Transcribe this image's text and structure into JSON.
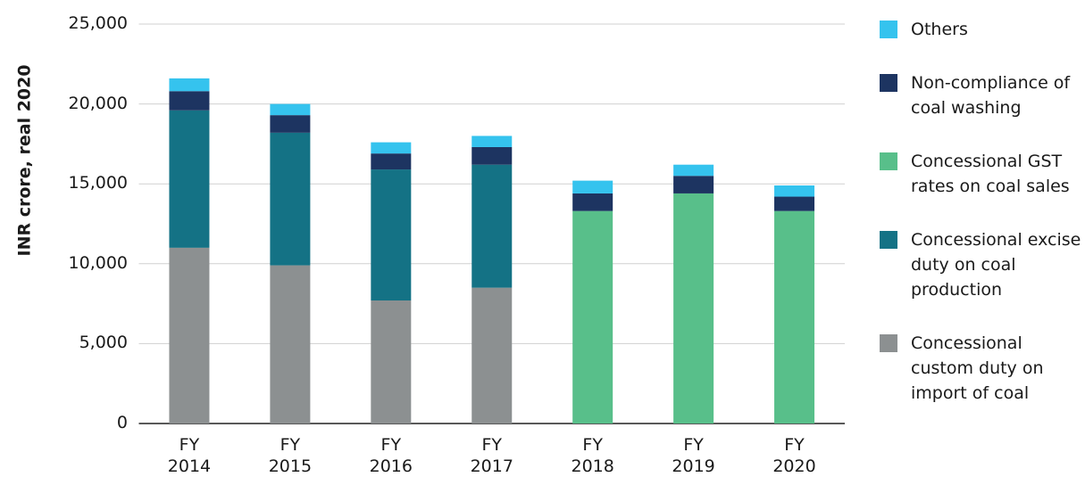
{
  "chart_data": {
    "type": "stacked_bar",
    "y_label": "INR crore, real 2020",
    "categories": [
      "FY 2014",
      "FY 2015",
      "FY 2016",
      "FY 2017",
      "FY 2018",
      "FY 2019",
      "FY 2020"
    ],
    "series": [
      {
        "name": "Concessional custom duty on import of coal",
        "color": "#8c9091",
        "values": [
          11000,
          9900,
          7700,
          8500,
          null,
          null,
          null
        ]
      },
      {
        "name": "Concessional excise duty on coal production",
        "color": "#147285",
        "values": [
          8600,
          8300,
          8200,
          7700,
          null,
          null,
          null
        ]
      },
      {
        "name": "Concessional GST rates on coal sales",
        "color": "#58bf8a",
        "values": [
          null,
          null,
          null,
          null,
          13300,
          14400,
          13300
        ]
      },
      {
        "name": "Non-compliance of coal washing",
        "color": "#1d3461",
        "values": [
          1200,
          1100,
          1000,
          1100,
          1100,
          1100,
          900
        ]
      },
      {
        "name": "Others",
        "color": "#35c3ee",
        "values": [
          800,
          700,
          700,
          700,
          800,
          700,
          700
        ]
      }
    ],
    "ylim": [
      0,
      25000
    ],
    "yticks": [
      0,
      {
        "value": 5000,
        "label": "5,000"
      },
      {
        "value": 10000,
        "label": "10,000"
      },
      {
        "value": 15000,
        "label": "15,000"
      },
      {
        "value": 20000,
        "label": "20,000"
      },
      {
        "value": 25000,
        "label": "25,000"
      }
    ],
    "grid": true,
    "legend": "right"
  }
}
